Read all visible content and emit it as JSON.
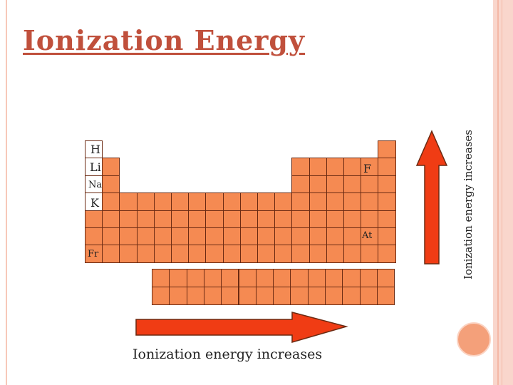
{
  "title": "Ionization Energy",
  "labels": {
    "H": "H",
    "Li": "Li",
    "Na": "Na",
    "K": "K",
    "Fr": "Fr",
    "F": "F",
    "At": "At"
  },
  "arrows": {
    "vertical_label": "Ionization energy increases",
    "horizontal_label": "Ionization energy increases"
  },
  "colors": {
    "cell_fill": "#f58a52",
    "cell_border": "#6b2a12",
    "arrow_fill": "#f03c14",
    "title": "#c0503c"
  }
}
